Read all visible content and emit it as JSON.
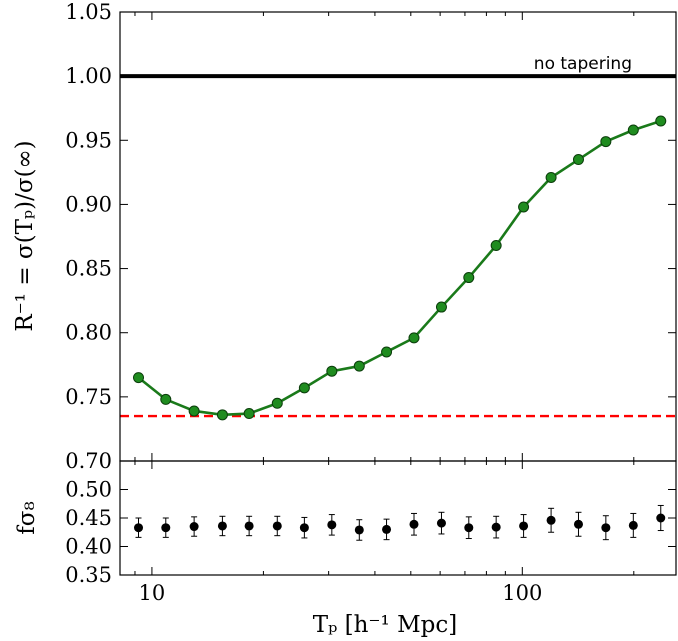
{
  "chart_data": [
    {
      "type": "line",
      "ylabel": "R⁻¹ = σ(Tₚ)/σ(∞)",
      "xlabel": "",
      "xscale": "log",
      "xlim": [
        8.2,
        260
      ],
      "ylim": [
        0.7,
        1.05
      ],
      "yticks": [
        "0.70",
        "0.75",
        "0.80",
        "0.85",
        "0.90",
        "0.95",
        "1.00",
        "1.05"
      ],
      "grid": false,
      "series": [
        {
          "color": "#1a7a1a",
          "marker_fill": "#1f8c1f",
          "x": [
            9.2,
            10.9,
            13.0,
            15.5,
            18.3,
            21.8,
            25.8,
            30.6,
            36.3,
            43.0,
            51.0,
            60.5,
            71.7,
            85.0,
            100.8,
            119.6,
            141.8,
            168.1,
            199.4,
            236.5
          ],
          "y": [
            0.765,
            0.748,
            0.739,
            0.736,
            0.737,
            0.745,
            0.757,
            0.77,
            0.774,
            0.785,
            0.796,
            0.82,
            0.843,
            0.868,
            0.898,
            0.921,
            0.935,
            0.949,
            0.958,
            0.965
          ]
        }
      ],
      "reference_lines": [
        {
          "y": 1.0,
          "style": "solid",
          "color": "#000000",
          "label": "no tapering"
        },
        {
          "y": 0.735,
          "style": "dashed",
          "color": "#ff0000"
        }
      ]
    },
    {
      "type": "scatter",
      "ylabel": "fσ₈",
      "xlabel": "Tₚ [h⁻¹ Mpc]",
      "xscale": "log",
      "xlim": [
        8.2,
        260
      ],
      "ylim": [
        0.35,
        0.55
      ],
      "yticks": [
        "0.35",
        "0.40",
        "0.45",
        "0.50"
      ],
      "xticks": [
        {
          "value": 10,
          "label": "10"
        },
        {
          "value": 100,
          "label": "100"
        }
      ],
      "grid": false,
      "series": [
        {
          "color": "#000000",
          "x": [
            9.2,
            10.9,
            13.0,
            15.5,
            18.3,
            21.8,
            25.8,
            30.6,
            36.3,
            43.0,
            51.0,
            60.5,
            71.7,
            85.0,
            100.8,
            119.6,
            141.8,
            168.1,
            199.4,
            236.5
          ],
          "y": [
            0.433,
            0.433,
            0.435,
            0.436,
            0.436,
            0.436,
            0.433,
            0.438,
            0.429,
            0.43,
            0.439,
            0.441,
            0.433,
            0.434,
            0.436,
            0.446,
            0.439,
            0.433,
            0.437,
            0.45
          ],
          "yerr": [
            0.017,
            0.017,
            0.017,
            0.017,
            0.017,
            0.017,
            0.018,
            0.018,
            0.018,
            0.018,
            0.019,
            0.019,
            0.019,
            0.019,
            0.02,
            0.021,
            0.021,
            0.021,
            0.021,
            0.022
          ]
        }
      ]
    }
  ]
}
